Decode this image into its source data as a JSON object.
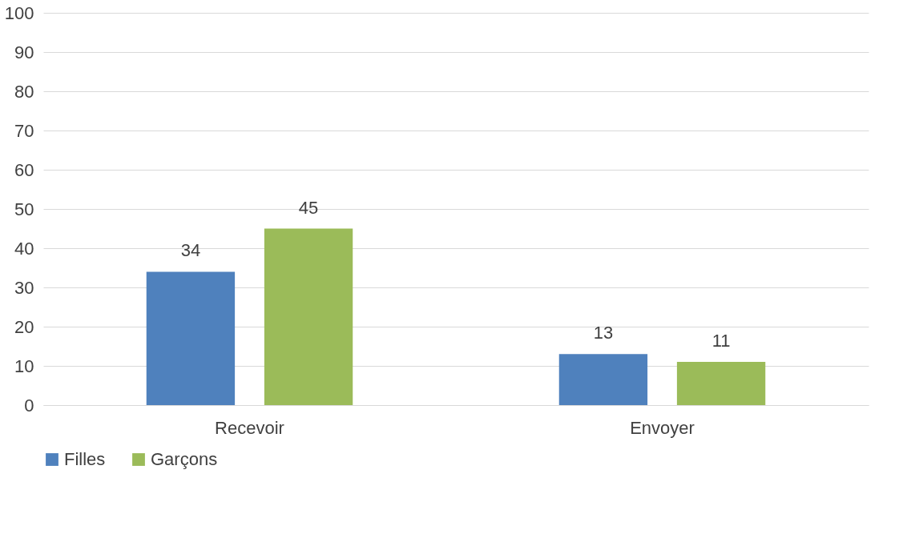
{
  "chart_data": {
    "type": "bar",
    "categories": [
      "Recevoir",
      "Envoyer"
    ],
    "series": [
      {
        "name": "Filles",
        "color": "#4f81bd",
        "values": [
          34,
          13
        ]
      },
      {
        "name": "Garçons",
        "color": "#9bbb59",
        "values": [
          45,
          11
        ]
      }
    ],
    "ylim": [
      0,
      100
    ],
    "yticks": [
      0,
      10,
      20,
      30,
      40,
      50,
      60,
      70,
      80,
      90,
      100
    ],
    "grid": "y",
    "legend": "bottom",
    "data_labels": true
  }
}
